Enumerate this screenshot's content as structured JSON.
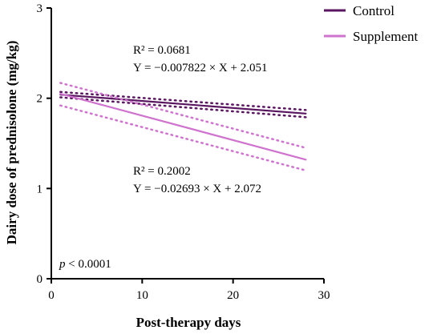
{
  "chart_data": {
    "type": "line",
    "xlabel": "Post-therapy days",
    "ylabel": "Dairy dose of prednisolone (mg/kg)",
    "xlim": [
      0,
      30
    ],
    "ylim": [
      0,
      3
    ],
    "x_ticks": [
      0,
      10,
      20,
      30
    ],
    "y_ticks": [
      0,
      1,
      2,
      3
    ],
    "grid": false,
    "legend_position": "top-right",
    "series": [
      {
        "name": "Control",
        "color": "#5a1660",
        "x": [
          1,
          28
        ],
        "y": [
          2.04,
          1.83
        ],
        "ci_upper": [
          2.07,
          1.87
        ],
        "ci_lower": [
          2.01,
          1.79
        ],
        "r2_text": "R² = 0.0681",
        "equation_text": "Y  = −0.007822 × X + 2.051"
      },
      {
        "name": "Supplement",
        "color": "#cf73cf",
        "x": [
          1,
          28
        ],
        "y": [
          2.05,
          1.32
        ],
        "ci_upper": [
          2.17,
          1.45
        ],
        "ci_lower": [
          1.92,
          1.2
        ],
        "r2_text": "R² = 0.2002",
        "equation_text": "Y  = −0.02693 × X + 2.072"
      }
    ],
    "annotations": {
      "p_label": "p",
      "p_value": " < 0.0001"
    }
  }
}
